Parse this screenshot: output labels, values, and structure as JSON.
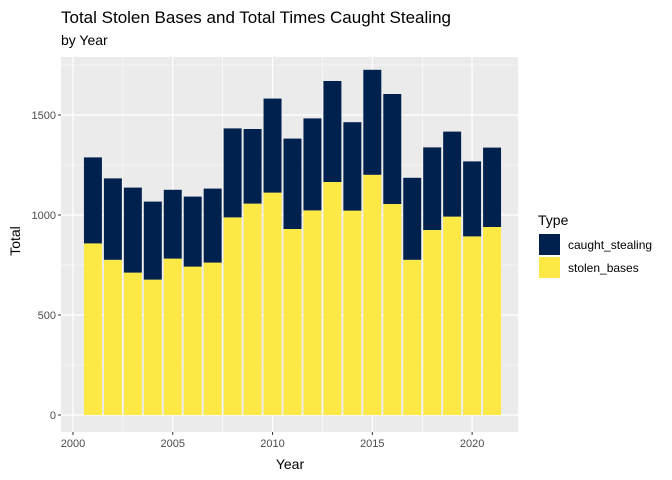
{
  "chart_data": {
    "type": "bar",
    "stacked": true,
    "title": "Total Stolen Bases and Total Times Caught Stealing",
    "subtitle": "by Year",
    "xlabel": "Year",
    "ylabel": "Total",
    "x_ticks": [
      "2000",
      "2005",
      "2010",
      "2015",
      "2020"
    ],
    "y_ticks": [
      "0",
      "500",
      "1000",
      "1500"
    ],
    "xlim": [
      1999.4,
      2022.3
    ],
    "ylim": [
      -85,
      1790
    ],
    "grid": true,
    "legend_position": "right",
    "legend_title": "Type",
    "x": [
      2001,
      2002,
      2003,
      2004,
      2005,
      2006,
      2007,
      2008,
      2009,
      2010,
      2011,
      2012,
      2013,
      2014,
      2015,
      2016,
      2017,
      2018,
      2019,
      2020,
      2021
    ],
    "series": [
      {
        "name": "stolen_bases",
        "color": "#FDE945",
        "values": [
          858,
          776,
          712,
          677,
          782,
          742,
          762,
          988,
          1057,
          1112,
          930,
          1023,
          1165,
          1022,
          1201,
          1055,
          776,
          925,
          992,
          893,
          940
        ]
      },
      {
        "name": "caught_stealing",
        "color": "#00204D",
        "values": [
          430,
          407,
          425,
          390,
          344,
          350,
          370,
          445,
          373,
          470,
          452,
          460,
          505,
          442,
          525,
          550,
          410,
          413,
          425,
          375,
          397
        ]
      }
    ],
    "legend_entries": [
      "caught_stealing",
      "stolen_bases"
    ]
  },
  "colors": {
    "panel_background": "#EBEBEB",
    "gridline": "#FFFFFF"
  }
}
